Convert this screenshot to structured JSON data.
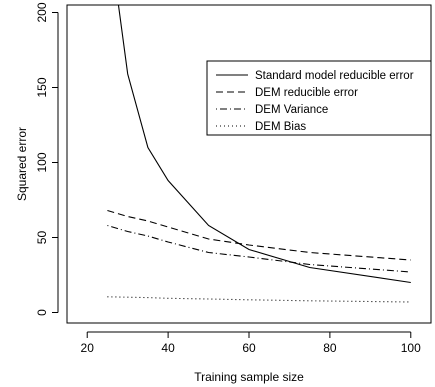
{
  "chart_data": {
    "type": "line",
    "title": "",
    "xlabel": "Training sample size",
    "ylabel": "Squared error",
    "xlim": [
      15,
      105
    ],
    "ylim": [
      -7,
      205
    ],
    "xticks": [
      20,
      40,
      60,
      80,
      100
    ],
    "yticks": [
      0,
      50,
      100,
      150,
      200
    ],
    "grid": false,
    "legend_position": "top-right",
    "series": [
      {
        "name": "Standard model reducible error",
        "linestyle": "solid",
        "x": [
          25,
          30,
          35,
          40,
          50,
          60,
          75,
          100
        ],
        "y": [
          260,
          159,
          110,
          88,
          58,
          42,
          30,
          20
        ]
      },
      {
        "name": "DEM reducible error",
        "linestyle": "dashed",
        "x": [
          25,
          30,
          35,
          40,
          50,
          60,
          75,
          100
        ],
        "y": [
          68,
          64,
          61,
          57,
          49,
          45,
          40,
          35
        ]
      },
      {
        "name": "DEM Variance",
        "linestyle": "dotdash",
        "x": [
          25,
          30,
          35,
          40,
          50,
          60,
          75,
          100
        ],
        "y": [
          58,
          54,
          51,
          47,
          40,
          37,
          32,
          27
        ]
      },
      {
        "name": "DEM Bias",
        "linestyle": "dotted",
        "x": [
          25,
          30,
          35,
          40,
          50,
          60,
          75,
          100
        ],
        "y": [
          10.5,
          10.2,
          9.9,
          9.5,
          9,
          8.5,
          7.8,
          7
        ]
      }
    ]
  }
}
